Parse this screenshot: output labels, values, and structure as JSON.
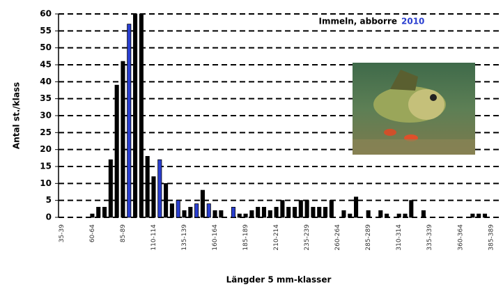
{
  "chart_data": {
    "type": "bar",
    "title": "Immeln, abborre",
    "title_year": "2010",
    "y_label": "Antal st./klass",
    "x_label": "Längder 5 mm-klasser",
    "categories": [
      "35-39",
      null,
      null,
      null,
      null,
      "60-64",
      null,
      null,
      null,
      null,
      "85-89",
      null,
      null,
      null,
      null,
      "110-114",
      null,
      null,
      null,
      null,
      "135-139",
      null,
      null,
      null,
      null,
      "160-164",
      null,
      null,
      null,
      null,
      "185-189",
      null,
      null,
      null,
      null,
      "210-214",
      null,
      null,
      null,
      null,
      "235-239",
      null,
      null,
      null,
      null,
      "260-264",
      null,
      null,
      null,
      null,
      "285-289",
      null,
      null,
      null,
      null,
      "310-314",
      null,
      null,
      null,
      null,
      "335-339",
      null,
      null,
      null,
      null,
      "360-364",
      null,
      null,
      null,
      null,
      "385-389",
      null
    ],
    "values": [
      0,
      0,
      0,
      0,
      0,
      1,
      3,
      3,
      17,
      39,
      46,
      57,
      60,
      60,
      18,
      12,
      17,
      10,
      4,
      5,
      2,
      3,
      4,
      8,
      4,
      2,
      2,
      0,
      3,
      1,
      1,
      2,
      3,
      3,
      2,
      3,
      5,
      3,
      3,
      5,
      5,
      3,
      3,
      3,
      5,
      0,
      2,
      1,
      6,
      0,
      2,
      0,
      2,
      1,
      0,
      1,
      1,
      5,
      0,
      2,
      0,
      0,
      0,
      0,
      0,
      0,
      0,
      1,
      1,
      1,
      0,
      0
    ],
    "bar_colors": [
      "#000000",
      "#000000",
      "#000000",
      "#000000",
      "#000000",
      "#000000",
      "#000000",
      "#000000",
      "#000000",
      "#000000",
      "#000000",
      "#2a3fd0",
      "#000000",
      "#000000",
      "#000000",
      "#000000",
      "#2a3fd0",
      "#000000",
      "#000000",
      "#2a3fd0",
      "#000000",
      "#000000",
      "#2a3fd0",
      "#000000",
      "#2a3fd0",
      "#000000",
      "#000000",
      "#000000",
      "#2a3fd0",
      "#000000",
      "#000000",
      "#000000",
      "#000000",
      "#000000",
      "#000000",
      "#000000",
      "#000000",
      "#000000",
      "#000000",
      "#000000",
      "#000000",
      "#000000",
      "#000000",
      "#000000",
      "#000000",
      "#000000",
      "#000000",
      "#000000",
      "#000000",
      "#000000",
      "#000000",
      "#000000",
      "#000000",
      "#000000",
      "#000000",
      "#000000",
      "#000000",
      "#000000",
      "#000000",
      "#000000",
      "#000000",
      "#000000",
      "#000000",
      "#000000",
      "#000000",
      "#000000",
      "#000000",
      "#000000",
      "#000000",
      "#000000",
      "#000000",
      "#000000"
    ],
    "ylim": [
      0,
      60
    ],
    "yticks": [
      0,
      5,
      10,
      15,
      20,
      25,
      30,
      35,
      40,
      45,
      50,
      55,
      60
    ],
    "grid": true
  }
}
